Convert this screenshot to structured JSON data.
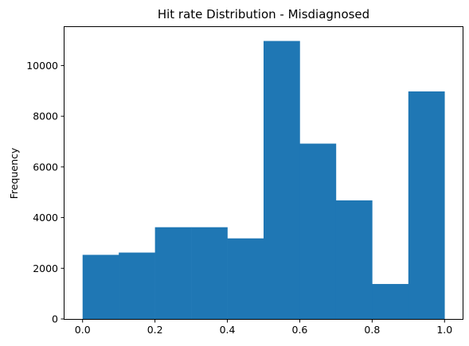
{
  "chart_data": {
    "type": "bar",
    "title": "Hit rate Distribution - Misdiagnosed",
    "xlabel": "",
    "ylabel": "Frequency",
    "bin_edges": [
      0.0,
      0.1,
      0.2,
      0.3,
      0.4,
      0.5,
      0.6,
      0.7,
      0.8,
      0.9,
      1.0
    ],
    "values": [
      2530,
      2620,
      3620,
      3620,
      3180,
      10970,
      6920,
      4680,
      1380,
      8980
    ],
    "xlim": [
      -0.05,
      1.05
    ],
    "ylim": [
      0,
      11520
    ],
    "xticks": [
      0.0,
      0.2,
      0.4,
      0.6,
      0.8,
      1.0
    ],
    "xtick_labels": [
      "0.0",
      "0.2",
      "0.4",
      "0.6",
      "0.8",
      "1.0"
    ],
    "yticks": [
      0,
      2000,
      4000,
      6000,
      8000,
      10000
    ],
    "ytick_labels": [
      "0",
      "2000",
      "4000",
      "6000",
      "8000",
      "10000"
    ],
    "bar_color": "#1f77b4",
    "grid": false,
    "legend": "none"
  }
}
